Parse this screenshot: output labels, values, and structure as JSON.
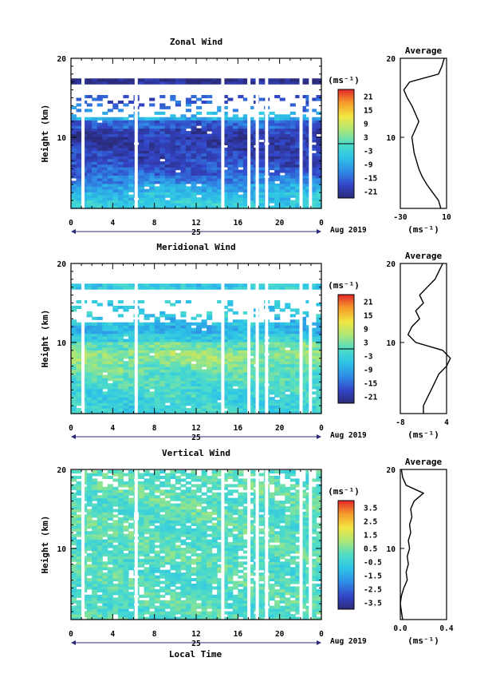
{
  "xlabel": "Local Time",
  "date_label": "Aug 2019",
  "day_label": "25",
  "panels": [
    {
      "title": "Zonal Wind",
      "ylabel": "Height (km)",
      "cb_unit": "(ms⁻¹)",
      "cb_ticks": [
        "21",
        "15",
        "9",
        "3",
        "-3",
        "-9",
        "-15",
        "-21"
      ],
      "avg_title": "Average",
      "avg_unit": "(ms⁻¹)",
      "avg_xticks": [
        "-30",
        "10"
      ]
    },
    {
      "title": "Meridional Wind",
      "ylabel": "Height (km)",
      "cb_unit": "(ms⁻¹)",
      "cb_ticks": [
        "21",
        "15",
        "9",
        "3",
        "-3",
        "-9",
        "-15",
        "-21"
      ],
      "avg_title": "Average",
      "avg_unit": "(ms⁻¹)",
      "avg_xticks": [
        "-8",
        "4"
      ]
    },
    {
      "title": "Vertical Wind",
      "ylabel": "Height (km)",
      "cb_unit": "(ms⁻¹)",
      "cb_ticks": [
        "3.5",
        "2.5",
        "1.5",
        "0.5",
        "-0.5",
        "-1.5",
        "-2.5",
        "-3.5"
      ],
      "avg_title": "Average",
      "avg_unit": "(ms⁻¹)",
      "avg_xticks": [
        "0.0",
        "0.4"
      ]
    }
  ],
  "chart_data": [
    {
      "type": "heatmap",
      "title": "Zonal Wind",
      "xlabel": "Local Time",
      "ylabel": "Height (km)",
      "x_ticks": [
        "0",
        "4",
        "8",
        "12",
        "16",
        "20",
        "0"
      ],
      "y_ticks": [
        "10",
        "20"
      ],
      "xlim": [
        0,
        24
      ],
      "ylim": [
        1,
        20
      ],
      "colorbar_range": [
        -24,
        24
      ],
      "colorbar_unit": "(ms⁻¹)",
      "z_description_levels_by_height": {
        "heights_km": [
          1,
          2,
          3,
          4,
          5,
          6,
          7,
          8,
          9,
          10,
          11,
          12,
          13,
          14,
          15,
          16,
          17
        ],
        "mean_u_ms": [
          -4,
          -6,
          -9,
          -13,
          -16,
          -18,
          -19,
          -20,
          -21,
          -20,
          -16,
          -8,
          -14,
          -17,
          -20,
          -22,
          -23
        ]
      },
      "average_profile": {
        "xlim": [
          -30,
          10
        ],
        "x_ticks": [
          "-30",
          "10"
        ],
        "height_km": [
          1,
          2,
          3,
          4,
          5,
          6,
          7,
          8,
          9,
          10,
          11,
          12,
          13,
          14,
          15,
          16,
          17,
          18,
          19,
          20
        ],
        "u_ms": [
          5,
          3,
          -2,
          -7,
          -11,
          -14,
          -16,
          -18,
          -19,
          -20,
          -17,
          -14,
          -17,
          -20,
          -24,
          -27,
          -22,
          3,
          6,
          8
        ]
      }
    },
    {
      "type": "heatmap",
      "title": "Meridional Wind",
      "xlabel": "Local Time",
      "ylabel": "Height (km)",
      "x_ticks": [
        "0",
        "4",
        "8",
        "12",
        "16",
        "20",
        "0"
      ],
      "y_ticks": [
        "10",
        "20"
      ],
      "xlim": [
        0,
        24
      ],
      "ylim": [
        1,
        20
      ],
      "colorbar_range": [
        -24,
        24
      ],
      "colorbar_unit": "(ms⁻¹)",
      "z_description_levels_by_height": {
        "heights_km": [
          1,
          2,
          3,
          4,
          5,
          6,
          7,
          8,
          9,
          10,
          11,
          12,
          13,
          14,
          15,
          16,
          17
        ],
        "mean_v_ms": [
          -3,
          -3,
          -2,
          -1,
          0,
          2,
          4,
          5,
          2,
          -4,
          -8,
          -6,
          -4,
          -5,
          -3,
          -4,
          -5
        ]
      },
      "average_profile": {
        "xlim": [
          -8,
          4
        ],
        "x_ticks": [
          "-8",
          "4"
        ],
        "height_km": [
          1,
          2,
          3,
          4,
          5,
          6,
          7,
          8,
          9,
          10,
          11,
          12,
          13,
          14,
          15,
          16,
          17,
          18,
          19,
          20
        ],
        "v_ms": [
          -2,
          -2,
          -1,
          0,
          1,
          2,
          4,
          5,
          3,
          -4,
          -6,
          -5,
          -3,
          -4,
          -2,
          -3,
          -1,
          1,
          2,
          3
        ]
      }
    },
    {
      "type": "heatmap",
      "title": "Vertical Wind",
      "xlabel": "Local Time",
      "ylabel": "Height (km)",
      "x_ticks": [
        "0",
        "4",
        "8",
        "12",
        "16",
        "20",
        "0"
      ],
      "y_ticks": [
        "10",
        "20"
      ],
      "xlim": [
        0,
        24
      ],
      "ylim": [
        1,
        20
      ],
      "colorbar_range": [
        -4,
        4
      ],
      "colorbar_unit": "(ms⁻¹)",
      "z_description_levels_by_height": {
        "heights_km": [
          1,
          2,
          3,
          4,
          5,
          6,
          7,
          8,
          9,
          10,
          11,
          12,
          13,
          14,
          15,
          16,
          17,
          18,
          19
        ],
        "mean_w_ms": [
          0,
          0,
          0.05,
          0,
          -0.05,
          0,
          0.05,
          0.05,
          0.05,
          0.05,
          0.05,
          0.05,
          0.1,
          0.1,
          0.05,
          0.1,
          0.2,
          0.05,
          0.05
        ]
      },
      "average_profile": {
        "xlim": [
          0,
          0.4
        ],
        "x_ticks": [
          "0.0",
          "0.4"
        ],
        "height_km": [
          1,
          2,
          3,
          4,
          5,
          6,
          7,
          8,
          9,
          10,
          11,
          12,
          13,
          14,
          15,
          16,
          17,
          18,
          19,
          20
        ],
        "w_ms": [
          0.02,
          0.01,
          0.0,
          0.01,
          0.03,
          0.06,
          0.05,
          0.07,
          0.06,
          0.08,
          0.07,
          0.09,
          0.08,
          0.1,
          0.09,
          0.12,
          0.2,
          0.05,
          0.02,
          0.01
        ]
      }
    }
  ]
}
